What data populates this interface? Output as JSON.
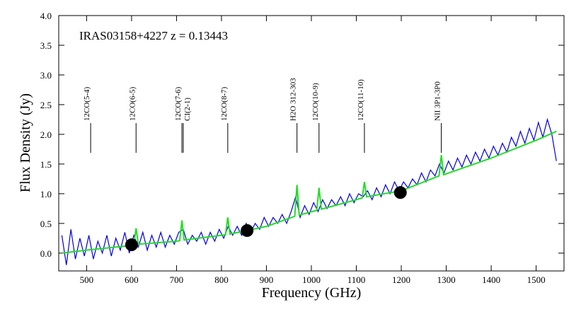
{
  "chart_data": {
    "type": "line",
    "annotation": "IRAS03158+4227   z = 0.13443",
    "xlabel": "Frequency  (GHz)",
    "ylabel": "Flux Density (Jy)",
    "xlim": [
      438,
      1562
    ],
    "ylim": [
      -0.3,
      4.0
    ],
    "xticks": [
      500,
      600,
      700,
      800,
      900,
      1000,
      1100,
      1200,
      1300,
      1400,
      1500
    ],
    "yticks": [
      {
        "value": 0,
        "label": "0.0"
      },
      0.5,
      {
        "value": 1,
        "label": "1.0"
      },
      1.5,
      {
        "value": 2,
        "label": "2.0"
      },
      2.5,
      {
        "value": 3,
        "label": "3.0"
      },
      3.5,
      {
        "value": 4,
        "label": "4.0"
      }
    ],
    "series": [
      {
        "color": "#0000dd",
        "style": "line",
        "x": [
          445,
          455,
          465,
          475,
          485,
          495,
          505,
          515,
          525,
          535,
          545,
          555,
          565,
          575,
          585,
          595,
          605,
          615,
          625,
          635,
          645,
          655,
          665,
          675,
          685,
          695,
          705,
          715,
          725,
          735,
          745,
          755,
          765,
          775,
          785,
          795,
          805,
          815,
          825,
          835,
          845,
          855,
          865,
          875,
          885,
          895,
          905,
          915,
          925,
          935,
          945,
          955,
          965,
          975,
          985,
          995,
          1005,
          1015,
          1025,
          1035,
          1045,
          1055,
          1065,
          1075,
          1085,
          1095,
          1105,
          1115,
          1125,
          1135,
          1145,
          1155,
          1165,
          1175,
          1185,
          1195,
          1205,
          1215,
          1225,
          1235,
          1245,
          1255,
          1265,
          1275,
          1285,
          1295,
          1305,
          1315,
          1325,
          1335,
          1345,
          1355,
          1365,
          1375,
          1385,
          1395,
          1405,
          1415,
          1425,
          1435,
          1445,
          1455,
          1465,
          1475,
          1485,
          1495,
          1505,
          1515,
          1525,
          1535,
          1545
        ],
        "values": [
          0.3,
          -0.2,
          0.4,
          -0.1,
          0.25,
          -0.05,
          0.3,
          -0.1,
          0.2,
          0.0,
          0.3,
          -0.05,
          0.25,
          0.05,
          0.35,
          0.0,
          0.3,
          0.1,
          0.35,
          0.05,
          0.3,
          0.1,
          0.35,
          0.1,
          0.3,
          0.15,
          0.35,
          0.4,
          0.15,
          0.3,
          0.2,
          0.35,
          0.15,
          0.35,
          0.2,
          0.4,
          0.25,
          0.45,
          0.3,
          0.45,
          0.3,
          0.5,
          0.35,
          0.5,
          0.4,
          0.6,
          0.45,
          0.6,
          0.5,
          0.65,
          0.5,
          0.7,
          0.95,
          0.6,
          0.8,
          0.65,
          0.85,
          0.7,
          0.9,
          0.75,
          0.9,
          0.8,
          0.95,
          0.8,
          1.0,
          0.85,
          1.0,
          0.95,
          1.05,
          0.9,
          1.1,
          0.95,
          1.15,
          1.0,
          1.2,
          1.05,
          1.2,
          1.1,
          1.25,
          1.15,
          1.35,
          1.2,
          1.4,
          1.3,
          1.5,
          1.35,
          1.55,
          1.4,
          1.6,
          1.45,
          1.65,
          1.5,
          1.7,
          1.55,
          1.75,
          1.6,
          1.8,
          1.65,
          1.85,
          1.7,
          1.95,
          1.8,
          2.05,
          1.85,
          2.1,
          1.9,
          2.2,
          1.95,
          2.25,
          2.0,
          1.55
        ]
      },
      {
        "color": "#22dd22",
        "style": "line",
        "x": [
          445,
          500,
          600,
          605,
          610,
          615,
          700,
          707,
          712,
          717,
          800,
          809,
          814,
          819,
          900,
          963,
          968,
          973,
          1012,
          1017,
          1022,
          1100,
          1113,
          1118,
          1123,
          1200,
          1284,
          1289,
          1294,
          1400,
          1500,
          1545
        ],
        "values": [
          0.0,
          0.05,
          0.13,
          0.14,
          0.42,
          0.15,
          0.2,
          0.21,
          0.55,
          0.22,
          0.3,
          0.31,
          0.6,
          0.32,
          0.45,
          0.62,
          1.15,
          0.64,
          0.72,
          1.1,
          0.74,
          0.9,
          0.93,
          1.2,
          0.95,
          1.05,
          1.3,
          1.65,
          1.32,
          1.6,
          1.9,
          2.05
        ]
      },
      {
        "color": "#000000",
        "style": "dots",
        "x": [
          600,
          857,
          1198
        ],
        "values": [
          0.14,
          0.38,
          1.02
        ]
      }
    ],
    "lines": [
      {
        "label": "12CO(5-4)",
        "x": 509
      },
      {
        "label": "12CO(6-5)",
        "x": 610
      },
      {
        "label": "12CO(7-6)",
        "x": 712
      },
      {
        "label": "CI(2-1)",
        "x": 715
      },
      {
        "label": "12CO(8-7)",
        "x": 814
      },
      {
        "label": "H2O 312-303",
        "x": 968
      },
      {
        "label": "12CO(10-9)",
        "x": 1017
      },
      {
        "label": "12CO(11-10)",
        "x": 1118
      },
      {
        "label": "NII 3P1-3P0",
        "x": 1289
      }
    ]
  }
}
